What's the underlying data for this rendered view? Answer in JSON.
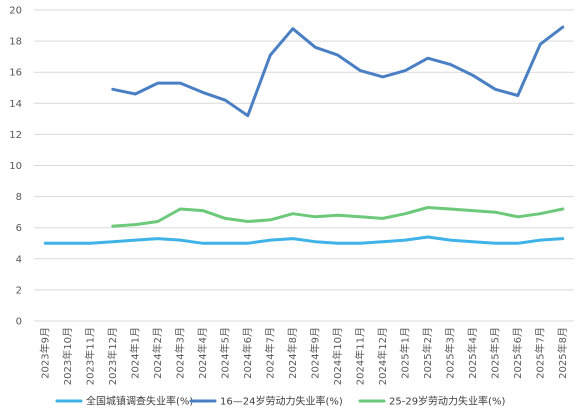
{
  "chart_data": {
    "type": "line",
    "title": "",
    "xlabel": "",
    "ylabel": "",
    "ylim": [
      0,
      20
    ],
    "yticks": [
      0,
      2,
      4,
      6,
      8,
      10,
      12,
      14,
      16,
      18,
      20
    ],
    "grid": true,
    "legend_position": "bottom",
    "categories": [
      "2023年9月",
      "2023年10月",
      "2023年11月",
      "2023年12月",
      "2024年1月",
      "2024年2月",
      "2024年3月",
      "2024年4月",
      "2024年5月",
      "2024年6月",
      "2024年7月",
      "2024年8月",
      "2024年9月",
      "2024年10月",
      "2024年11月",
      "2024年12月",
      "2025年1月",
      "2025年2月",
      "2025年3月",
      "2025年4月",
      "2025年5月",
      "2025年6月",
      "2025年7月",
      "2025年8月"
    ],
    "series": [
      {
        "name": "全国城镇调查失业率(%)",
        "color": "#3fb2e8",
        "values": [
          5.0,
          5.0,
          5.0,
          5.1,
          5.2,
          5.3,
          5.2,
          5.0,
          5.0,
          5.0,
          5.2,
          5.3,
          5.1,
          5.0,
          5.0,
          5.1,
          5.2,
          5.4,
          5.2,
          5.1,
          5.0,
          5.0,
          5.2,
          5.3
        ]
      },
      {
        "name": "16—24岁劳动力失业率(%)",
        "color": "#4a7fc4",
        "values": [
          null,
          null,
          null,
          14.9,
          14.6,
          15.3,
          15.3,
          14.7,
          14.2,
          13.2,
          17.1,
          18.8,
          17.6,
          17.1,
          16.1,
          15.7,
          16.1,
          16.9,
          16.5,
          15.8,
          14.9,
          14.5,
          17.8,
          18.9
        ]
      },
      {
        "name": "25-29岁劳动力失业率(%)",
        "color": "#6cc97a",
        "values": [
          null,
          null,
          null,
          6.1,
          6.2,
          6.4,
          7.2,
          7.1,
          6.6,
          6.4,
          6.5,
          6.9,
          6.7,
          6.8,
          6.7,
          6.6,
          6.9,
          7.3,
          7.2,
          7.1,
          7.0,
          6.7,
          6.9,
          7.2
        ]
      }
    ]
  }
}
